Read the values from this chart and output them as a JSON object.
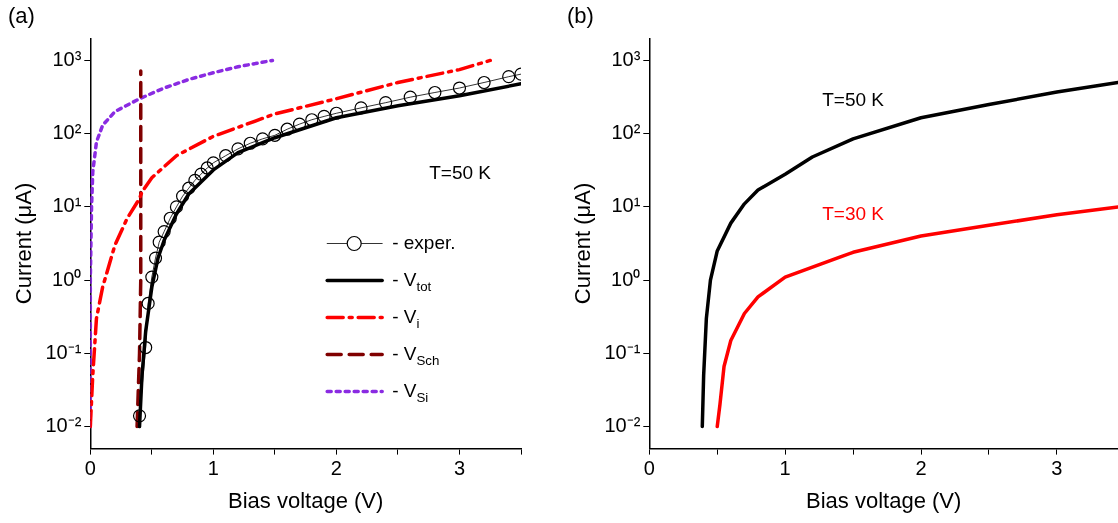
{
  "chart_data": [
    {
      "type": "line",
      "title": "(a)",
      "xlabel": "Bias voltage (V)",
      "ylabel": "Current (μA)",
      "log": "y",
      "xlim": [
        0,
        3.5
      ],
      "xticks": [
        0,
        {
          "value": 0.5,
          "label": null
        },
        1,
        {
          "value": 1.5,
          "label": null
        },
        2,
        {
          "value": 2.5,
          "label": null
        },
        3,
        {
          "value": 3.5,
          "label": null
        }
      ],
      "ylim": [
        0.005,
        2000
      ],
      "yticks": [
        {
          "value": 0.01,
          "label": "10⁻²"
        },
        {
          "value": 0.1,
          "label": "10⁻¹"
        },
        {
          "value": 1,
          "label": "10⁰"
        },
        {
          "value": 10,
          "label": "10¹"
        },
        {
          "value": 100,
          "label": "10²"
        },
        {
          "value": 1000,
          "label": "10³"
        }
      ],
      "grid": false,
      "legend": "right",
      "annotations": [
        "T=50 K"
      ],
      "series": [
        {
          "name": "- exper.",
          "color": "#000000",
          "marker": "circle",
          "line_style": "solid",
          "x": [
            0.4,
            0.45,
            0.47,
            0.5,
            0.53,
            0.56,
            0.6,
            0.65,
            0.7,
            0.75,
            0.8,
            0.85,
            0.9,
            0.95,
            1.0,
            1.1,
            1.2,
            1.3,
            1.4,
            1.5,
            1.6,
            1.7,
            1.8,
            1.9,
            2.0,
            2.2,
            2.4,
            2.6,
            2.8,
            3.0,
            3.2,
            3.4,
            3.5
          ],
          "values": [
            0.014,
            0.12,
            0.48,
            1.1,
            2,
            3.3,
            4.6,
            7,
            10,
            14,
            18,
            23,
            28,
            34,
            40,
            50,
            62,
            74,
            85,
            95,
            115,
            135,
            155,
            172,
            190,
            225,
            265,
            315,
            365,
            420,
            500,
            600,
            650
          ]
        },
        {
          "name": "- V$_{tot}$",
          "color": "#000000",
          "marker": "none",
          "line_style": "solid",
          "x": [
            0.4,
            0.42,
            0.45,
            0.5,
            0.55,
            0.6,
            0.7,
            0.8,
            1.0,
            1.2,
            1.5,
            2.0,
            2.5,
            3.0,
            3.5
          ],
          "values": [
            0.01,
            0.05,
            0.2,
            0.8,
            2,
            3.5,
            8,
            15,
            32,
            55,
            88,
            165,
            240,
            330,
            480
          ]
        },
        {
          "name": "- V$_{i}$",
          "color": "#ff0000",
          "marker": "none",
          "line_style": "dashdot",
          "x": [
            0,
            0.02,
            0.05,
            0.1,
            0.2,
            0.3,
            0.4,
            0.42,
            0.5,
            0.7,
            1.0,
            1.5,
            2.0,
            2.5,
            3.0,
            3.25
          ],
          "values": [
            0.01,
            0.05,
            0.3,
            0.8,
            3,
            7,
            13,
            16,
            25,
            50,
            92,
            186,
            300,
            500,
            750,
            1000
          ]
        },
        {
          "name": "- V$_{Sch}$",
          "color": "#800000",
          "marker": "none",
          "line_style": "dashed",
          "x": [
            0.38,
            0.4,
            0.41,
            0.41,
            0.41
          ],
          "values": [
            0.01,
            0.1,
            1,
            15,
            720
          ]
        },
        {
          "name": "- V$_{Si}$",
          "color": "#8a2be2",
          "marker": "none",
          "line_style": "dotted",
          "x": [
            0,
            0.0,
            0.01,
            0.02,
            0.05,
            0.1,
            0.2,
            0.4,
            0.6,
            0.8,
            1.0,
            1.2,
            1.48
          ],
          "values": [
            0.01,
            1,
            10,
            30,
            77,
            130,
            200,
            300,
            420,
            550,
            680,
            820,
            1000
          ]
        }
      ]
    },
    {
      "type": "line",
      "title": "(b)",
      "xlabel": "Bias voltage (V)",
      "ylabel": "Current (μA)",
      "log": "y",
      "xlim": [
        0,
        3.45
      ],
      "xticks": [
        0,
        {
          "value": 0.5,
          "label": null
        },
        1,
        {
          "value": 1.5,
          "label": null
        },
        2,
        {
          "value": 2.5,
          "label": null
        },
        3
      ],
      "ylim": [
        0.005,
        2000
      ],
      "yticks": [
        {
          "value": 0.01,
          "label": "10⁻²"
        },
        {
          "value": 0.1,
          "label": "10⁻¹"
        },
        {
          "value": 1,
          "label": "10⁰"
        },
        {
          "value": 10,
          "label": "10¹"
        },
        {
          "value": 100,
          "label": "10²"
        },
        {
          "value": 1000,
          "label": "10³"
        }
      ],
      "grid": false,
      "legend": false,
      "series": [
        {
          "name": "T=50 K",
          "color": "#000000",
          "marker": "none",
          "line_style": "solid",
          "x": [
            0.39,
            0.4,
            0.42,
            0.45,
            0.5,
            0.6,
            0.7,
            0.8,
            1.0,
            1.2,
            1.5,
            2.0,
            2.5,
            3.0,
            3.45
          ],
          "values": [
            0.01,
            0.05,
            0.3,
            1,
            2.5,
            6,
            11,
            17,
            28,
            48,
            85,
            165,
            250,
            370,
            500
          ]
        },
        {
          "name": "T=30 K",
          "color": "#ff0000",
          "marker": "none",
          "line_style": "solid",
          "x": [
            0.5,
            0.52,
            0.55,
            0.6,
            0.7,
            0.8,
            1.0,
            1.5,
            2.0,
            2.5,
            3.0,
            3.45
          ],
          "values": [
            0.01,
            0.02,
            0.066,
            0.15,
            0.35,
            0.59,
            1.1,
            2.4,
            4,
            5.6,
            7.8,
            10
          ]
        }
      ]
    }
  ]
}
